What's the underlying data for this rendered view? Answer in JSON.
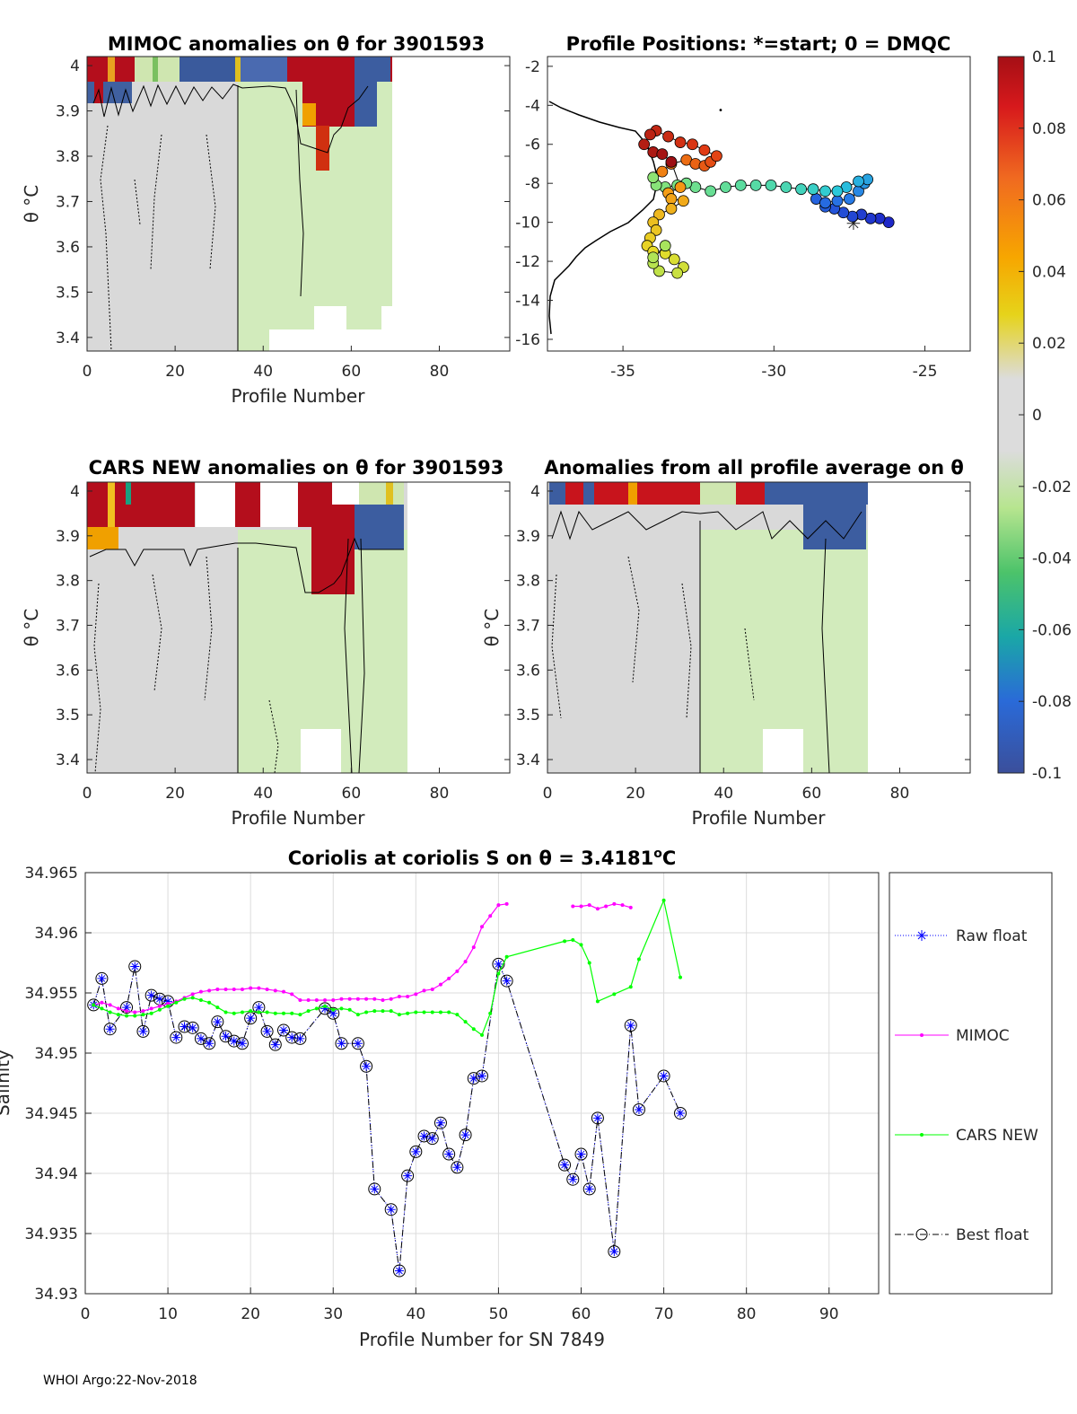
{
  "footer": "WHOI Argo:22-Nov-2018",
  "chart_data": [
    {
      "id": "mimoc",
      "type": "heatmap",
      "title": "MIMOC anomalies on θ  for 3901593",
      "xlabel": "Profile Number",
      "ylabel": "θ °C",
      "xlim": [
        0,
        96
      ],
      "ylim": [
        3.37,
        4.02
      ],
      "xticks": [
        "0",
        "20",
        "40",
        "60",
        "80"
      ],
      "yticks": [
        "3.4",
        "3.5",
        "3.6",
        "3.7",
        "3.8",
        "3.9",
        "4"
      ]
    },
    {
      "id": "positions",
      "type": "scatter",
      "title": "Profile Positions: *=start; 0 = DMQC",
      "xlim": [
        -37.5,
        -23.5
      ],
      "ylim": [
        -16.6,
        -1.5
      ],
      "xticks": [
        "-35",
        "-30",
        "-25"
      ],
      "yticks": [
        "-2",
        "-4",
        "-6",
        "-8",
        "-10",
        "-12",
        "-14",
        "-16"
      ],
      "track": [
        [
          -26.2,
          -10.0
        ],
        [
          -26.5,
          -9.8
        ],
        [
          -26.8,
          -9.8
        ],
        [
          -27.1,
          -9.6
        ],
        [
          -27.4,
          -9.7
        ],
        [
          -27.7,
          -9.5
        ],
        [
          -28.0,
          -9.3
        ],
        [
          -28.3,
          -9.2
        ],
        [
          -28.6,
          -8.8
        ],
        [
          -28.3,
          -9.0
        ],
        [
          -27.9,
          -8.9
        ],
        [
          -27.5,
          -8.8
        ],
        [
          -27.2,
          -8.4
        ],
        [
          -27.0,
          -8.0
        ],
        [
          -26.9,
          -7.8
        ],
        [
          -27.2,
          -7.9
        ],
        [
          -27.6,
          -8.2
        ],
        [
          -27.9,
          -8.4
        ],
        [
          -28.3,
          -8.4
        ],
        [
          -28.7,
          -8.3
        ],
        [
          -29.1,
          -8.3
        ],
        [
          -29.6,
          -8.2
        ],
        [
          -30.1,
          -8.1
        ],
        [
          -30.6,
          -8.1
        ],
        [
          -31.1,
          -8.1
        ],
        [
          -31.6,
          -8.2
        ],
        [
          -32.1,
          -8.4
        ],
        [
          -32.6,
          -8.2
        ],
        [
          -32.9,
          -8.0
        ],
        [
          -33.2,
          -8.1
        ],
        [
          -33.6,
          -8.2
        ],
        [
          -33.9,
          -8.1
        ],
        [
          -34.0,
          -7.7
        ],
        [
          -33.7,
          -7.4
        ],
        [
          -33.4,
          -7.0
        ],
        [
          -32.9,
          -6.8
        ],
        [
          -32.6,
          -7.0
        ],
        [
          -32.3,
          -7.1
        ],
        [
          -32.1,
          -6.9
        ],
        [
          -31.9,
          -6.6
        ],
        [
          -32.3,
          -6.3
        ],
        [
          -32.7,
          -6.0
        ],
        [
          -33.1,
          -5.9
        ],
        [
          -33.5,
          -5.6
        ],
        [
          -33.9,
          -5.3
        ],
        [
          -34.1,
          -5.5
        ],
        [
          -34.3,
          -6.0
        ],
        [
          -34.0,
          -6.4
        ],
        [
          -33.7,
          -6.5
        ],
        [
          -33.4,
          -6.9
        ],
        [
          -33.1,
          -8.2
        ],
        [
          -33.5,
          -8.5
        ],
        [
          -33.4,
          -8.8
        ],
        [
          -33.0,
          -8.9
        ],
        [
          -33.4,
          -9.3
        ],
        [
          -33.8,
          -9.6
        ],
        [
          -34.0,
          -10.0
        ],
        [
          -33.9,
          -10.4
        ],
        [
          -34.1,
          -10.8
        ],
        [
          -34.2,
          -11.2
        ],
        [
          -34.0,
          -11.5
        ],
        [
          -33.6,
          -11.6
        ],
        [
          -33.3,
          -11.9
        ],
        [
          -33.0,
          -12.3
        ],
        [
          -33.2,
          -12.6
        ],
        [
          -33.8,
          -12.5
        ],
        [
          -34.0,
          -12.1
        ],
        [
          -34.0,
          -11.8
        ],
        [
          -33.6,
          -11.2
        ]
      ]
    },
    {
      "id": "colorbar",
      "type": "colorbar",
      "ticks": [
        "0.1",
        "0.08",
        "0.06",
        "0.04",
        "0.02",
        "0",
        "-0.02",
        "-0.04",
        "-0.06",
        "-0.08",
        "-0.1"
      ]
    },
    {
      "id": "cars",
      "type": "heatmap",
      "title": "CARS NEW anomalies on θ for 3901593",
      "xlabel": "Profile Number",
      "ylabel": "θ °C",
      "xlim": [
        0,
        96
      ],
      "ylim": [
        3.37,
        4.02
      ],
      "xticks": [
        "0",
        "20",
        "40",
        "60",
        "80"
      ],
      "yticks": [
        "3.4",
        "3.5",
        "3.6",
        "3.7",
        "3.8",
        "3.9",
        "4"
      ]
    },
    {
      "id": "allavg",
      "type": "heatmap",
      "title": "Anomalies from all profile average on θ",
      "xlabel": "Profile Number",
      "ylabel": "θ °C",
      "xlim": [
        0,
        96
      ],
      "ylim": [
        3.37,
        4.02
      ],
      "xticks": [
        "0",
        "20",
        "40",
        "60",
        "80"
      ],
      "yticks": [
        "3.4",
        "3.5",
        "3.6",
        "3.7",
        "3.8",
        "3.9",
        "4"
      ]
    },
    {
      "id": "coriolis",
      "type": "line",
      "title": "Coriolis at coriolis S on θ = 3.4181°C",
      "xlabel": "Profile Number for SN 7849",
      "ylabel": "Salinity",
      "xlim": [
        0,
        96
      ],
      "ylim": [
        34.93,
        34.965
      ],
      "xticks": [
        "0",
        "10",
        "20",
        "30",
        "40",
        "50",
        "60",
        "70",
        "80",
        "90"
      ],
      "yticks": [
        "34.93",
        "34.935",
        "34.94",
        "34.945",
        "34.95",
        "34.955",
        "34.96",
        "34.965"
      ],
      "legend": [
        "Raw float",
        "MIMOC",
        "CARS NEW",
        "Best float"
      ],
      "series": [
        {
          "name": "Best float",
          "color": "#0000ff",
          "points": [
            [
              1,
              34.954
            ],
            [
              2,
              34.9562
            ],
            [
              3,
              34.952
            ],
            [
              5,
              34.9538
            ],
            [
              6,
              34.9572
            ],
            [
              7,
              34.9518
            ],
            [
              8,
              34.9548
            ],
            [
              9,
              34.9545
            ],
            [
              10,
              34.9543
            ],
            [
              11,
              34.9513
            ],
            [
              12,
              34.9522
            ],
            [
              13,
              34.9521
            ],
            [
              14,
              34.9512
            ],
            [
              15,
              34.9508
            ],
            [
              16,
              34.9526
            ],
            [
              17,
              34.9514
            ],
            [
              18,
              34.951
            ],
            [
              19,
              34.9508
            ],
            [
              20,
              34.9529
            ],
            [
              21,
              34.9538
            ],
            [
              22,
              34.9518
            ],
            [
              23,
              34.9507
            ],
            [
              24,
              34.9519
            ],
            [
              25,
              34.9513
            ],
            [
              26,
              34.9512
            ],
            [
              29,
              34.9537
            ],
            [
              30,
              34.9533
            ],
            [
              31,
              34.9508
            ],
            [
              33,
              34.9508
            ],
            [
              34,
              34.9489
            ],
            [
              35,
              34.9387
            ],
            [
              37,
              34.937
            ],
            [
              38,
              34.9319
            ],
            [
              39,
              34.9398
            ],
            [
              40,
              34.9418
            ],
            [
              41,
              34.9431
            ],
            [
              42,
              34.9429
            ],
            [
              43,
              34.9442
            ],
            [
              44,
              34.9416
            ],
            [
              45,
              34.9405
            ],
            [
              46,
              34.9432
            ],
            [
              47,
              34.9479
            ],
            [
              48,
              34.9481
            ],
            [
              50,
              34.9574
            ],
            [
              51,
              34.956
            ],
            [
              58,
              34.9407
            ],
            [
              59,
              34.9395
            ],
            [
              60,
              34.9416
            ],
            [
              61,
              34.9387
            ],
            [
              62,
              34.9446
            ],
            [
              64,
              34.9335
            ],
            [
              66,
              34.9523
            ],
            [
              67,
              34.9453
            ],
            [
              70,
              34.9481
            ],
            [
              72,
              34.945
            ]
          ]
        },
        {
          "name": "MIMOC",
          "color": "#ff00ff",
          "points": [
            [
              1,
              34.954
            ],
            [
              2,
              34.9542
            ],
            [
              3,
              34.954
            ],
            [
              4,
              34.9537
            ],
            [
              5,
              34.9535
            ],
            [
              6,
              34.9534
            ],
            [
              7,
              34.9535
            ],
            [
              8,
              34.9537
            ],
            [
              9,
              34.9539
            ],
            [
              10,
              34.9541
            ],
            [
              11,
              34.9543
            ],
            [
              12,
              34.9546
            ],
            [
              13,
              34.9549
            ],
            [
              14,
              34.9551
            ],
            [
              15,
              34.9552
            ],
            [
              16,
              34.9553
            ],
            [
              17,
              34.9553
            ],
            [
              18,
              34.9553
            ],
            [
              19,
              34.9553
            ],
            [
              20,
              34.9554
            ],
            [
              21,
              34.9554
            ],
            [
              22,
              34.9553
            ],
            [
              23,
              34.9552
            ],
            [
              24,
              34.9551
            ],
            [
              25,
              34.9549
            ],
            [
              26,
              34.9544
            ],
            [
              27,
              34.9544
            ],
            [
              28,
              34.9544
            ],
            [
              29,
              34.9544
            ],
            [
              30,
              34.9544
            ],
            [
              31,
              34.9545
            ],
            [
              32,
              34.9545
            ],
            [
              33,
              34.9545
            ],
            [
              34,
              34.9545
            ],
            [
              35,
              34.9545
            ],
            [
              36,
              34.9544
            ],
            [
              37,
              34.9545
            ],
            [
              38,
              34.9547
            ],
            [
              39,
              34.9547
            ],
            [
              40,
              34.9549
            ],
            [
              41,
              34.9552
            ],
            [
              42,
              34.9553
            ],
            [
              43,
              34.9557
            ],
            [
              44,
              34.9562
            ],
            [
              45,
              34.9568
            ],
            [
              46,
              34.9576
            ],
            [
              47,
              34.9588
            ],
            [
              48,
              34.9605
            ],
            [
              49,
              34.9614
            ],
            [
              50,
              34.9623
            ],
            [
              51,
              34.9624
            ],
            null,
            [
              59,
              34.9622
            ],
            [
              60,
              34.9622
            ],
            [
              61,
              34.9623
            ],
            [
              62,
              34.962
            ],
            [
              63,
              34.9622
            ],
            [
              64,
              34.9624
            ],
            [
              65,
              34.9623
            ],
            [
              66,
              34.9621
            ]
          ]
        },
        {
          "name": "CARS NEW",
          "color": "#00ff00",
          "points": [
            [
              1,
              34.954
            ],
            [
              2,
              34.9537
            ],
            [
              3,
              34.9534
            ],
            [
              4,
              34.9532
            ],
            [
              5,
              34.9531
            ],
            [
              6,
              34.9531
            ],
            [
              7,
              34.9532
            ],
            [
              8,
              34.9533
            ],
            [
              9,
              34.9536
            ],
            [
              10,
              34.9539
            ],
            [
              11,
              34.9542
            ],
            [
              12,
              34.9545
            ],
            [
              13,
              34.9546
            ],
            [
              14,
              34.9544
            ],
            [
              15,
              34.9542
            ],
            [
              16,
              34.9538
            ],
            [
              17,
              34.9534
            ],
            [
              18,
              34.9533
            ],
            [
              19,
              34.9534
            ],
            [
              20,
              34.9535
            ],
            [
              21,
              34.9534
            ],
            [
              22,
              34.9534
            ],
            [
              23,
              34.9533
            ],
            [
              24,
              34.9533
            ],
            [
              25,
              34.9533
            ],
            [
              26,
              34.9532
            ],
            [
              27,
              34.9535
            ],
            [
              28,
              34.9537
            ],
            [
              29,
              34.9539
            ],
            [
              30,
              34.9536
            ],
            [
              31,
              34.9537
            ],
            [
              32,
              34.9536
            ],
            [
              33,
              34.9532
            ],
            [
              34,
              34.9534
            ],
            [
              35,
              34.9535
            ],
            [
              36,
              34.9535
            ],
            [
              37,
              34.9535
            ],
            [
              38,
              34.9532
            ],
            [
              39,
              34.9533
            ],
            [
              40,
              34.9534
            ],
            [
              41,
              34.9534
            ],
            [
              42,
              34.9534
            ],
            [
              43,
              34.9534
            ],
            [
              44,
              34.9534
            ],
            [
              45,
              34.9532
            ],
            [
              46,
              34.9526
            ],
            [
              47,
              34.952
            ],
            [
              48,
              34.9515
            ],
            [
              49,
              34.9533
            ],
            [
              50,
              34.9566
            ],
            [
              51,
              34.958
            ],
            [
              58,
              34.9593
            ],
            [
              59,
              34.9594
            ],
            [
              60,
              34.959
            ],
            [
              61,
              34.9575
            ],
            [
              62,
              34.9543
            ],
            [
              64,
              34.9549
            ],
            [
              66,
              34.9555
            ],
            [
              67,
              34.9578
            ],
            [
              70,
              34.9627
            ],
            [
              72,
              34.9563
            ]
          ]
        }
      ]
    }
  ]
}
